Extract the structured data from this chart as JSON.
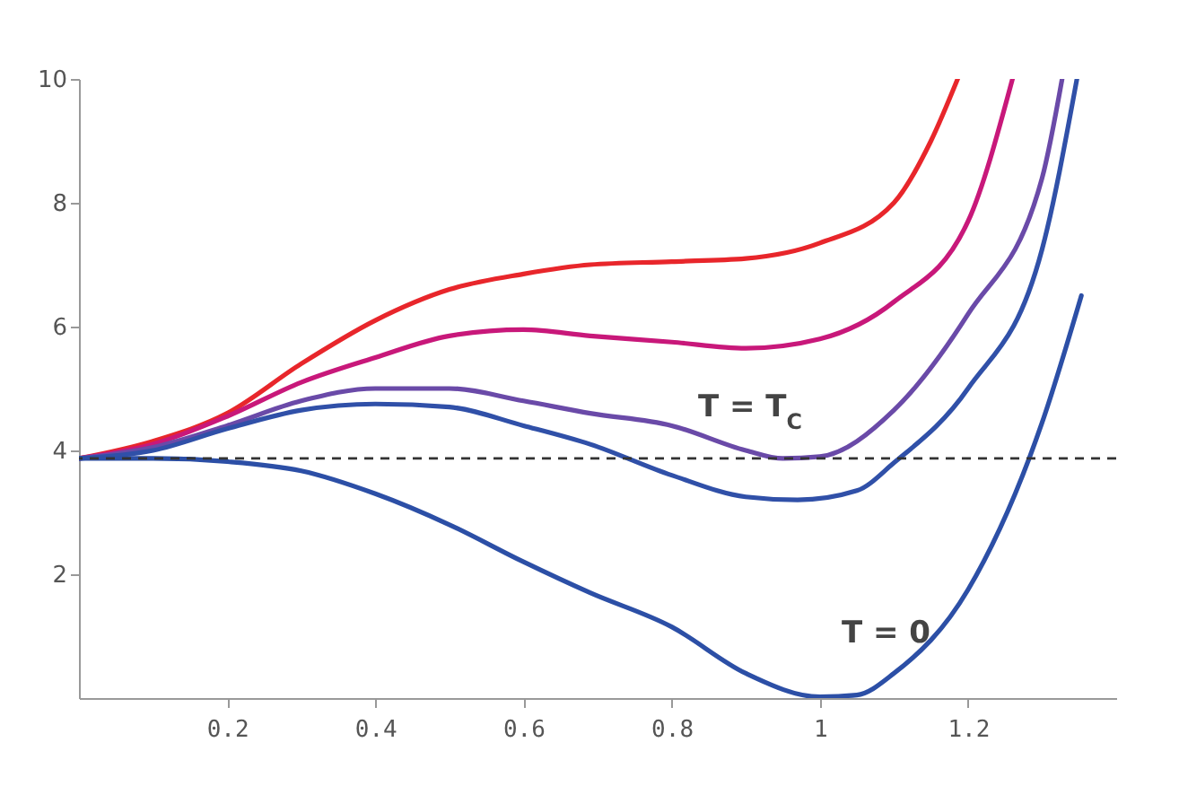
{
  "chart_data": {
    "type": "line",
    "xlim": [
      0,
      1.4
    ],
    "ylim": [
      0,
      10
    ],
    "xticks": [
      0.2,
      0.4,
      0.6,
      0.8,
      1,
      1.2
    ],
    "yticks": [
      2,
      4,
      6,
      8,
      10
    ],
    "grid": false,
    "legend": false,
    "marker": "none",
    "line_style": "solid",
    "series": [
      {
        "color": "#e8262b",
        "x": [
          0,
          0.1,
          0.2,
          0.3,
          0.4,
          0.5,
          0.6,
          0.69,
          0.8,
          0.9,
          1.0,
          1.1,
          1.15,
          1.186
        ],
        "values": [
          3.87,
          4.15,
          4.6,
          5.4,
          6.1,
          6.6,
          6.85,
          7.0,
          7.05,
          7.1,
          7.35,
          8.0,
          9.0,
          10
        ]
      },
      {
        "color": "#c8187a",
        "x": [
          0,
          0.1,
          0.2,
          0.3,
          0.4,
          0.5,
          0.6,
          0.69,
          0.8,
          0.9,
          1.0,
          1.1,
          1.2,
          1.26
        ],
        "values": [
          3.87,
          4.1,
          4.55,
          5.1,
          5.5,
          5.85,
          5.95,
          5.85,
          5.75,
          5.65,
          5.8,
          6.4,
          7.7,
          10
        ]
      },
      {
        "color": "#6a4aa8",
        "x": [
          0,
          0.1,
          0.2,
          0.3,
          0.4,
          0.5,
          0.6,
          0.69,
          0.8,
          0.9,
          0.95,
          1.0,
          1.1,
          1.2,
          1.3,
          1.327
        ],
        "values": [
          3.87,
          4.05,
          4.4,
          4.8,
          5.0,
          5.0,
          4.8,
          4.6,
          4.4,
          4.0,
          3.87,
          3.9,
          4.65,
          6.2,
          8.4,
          10
        ]
      },
      {
        "color": "#3050a8",
        "x": [
          0,
          0.1,
          0.2,
          0.3,
          0.4,
          0.5,
          0.6,
          0.69,
          0.8,
          0.9,
          0.97,
          1.05,
          1.1,
          1.2,
          1.3,
          1.347
        ],
        "values": [
          3.87,
          4.0,
          4.35,
          4.65,
          4.75,
          4.7,
          4.4,
          4.1,
          3.6,
          3.25,
          3.2,
          3.35,
          3.8,
          5.0,
          7.25,
          10
        ]
      },
      {
        "color": "#2c4fa6",
        "x": [
          0,
          0.1,
          0.2,
          0.3,
          0.4,
          0.5,
          0.6,
          0.69,
          0.8,
          0.9,
          1.0,
          1.05,
          1.1,
          1.2,
          1.3,
          1.353
        ],
        "values": [
          3.87,
          3.87,
          3.82,
          3.67,
          3.3,
          2.8,
          2.2,
          1.7,
          1.15,
          0.4,
          0.02,
          0.05,
          0.4,
          1.75,
          4.45,
          6.5
        ]
      }
    ],
    "ref_lines": [
      {
        "axis": "y",
        "value": 3.87,
        "color": "#333333",
        "line_style": "dashed"
      }
    ],
    "annotations": [
      "T = T$_{C}$",
      "T = 0"
    ]
  }
}
